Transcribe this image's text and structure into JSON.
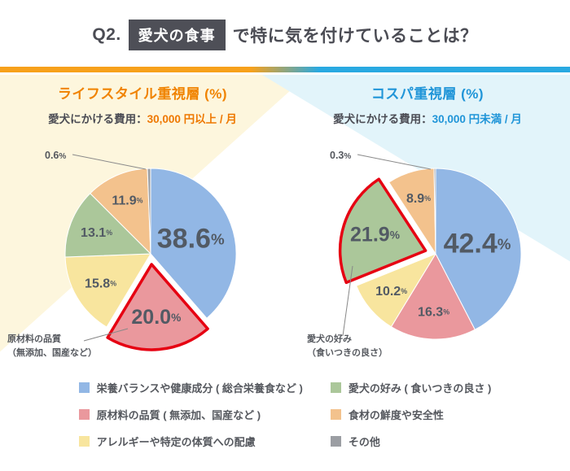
{
  "header": {
    "q_label": "Q2.",
    "highlight": "愛犬の食事",
    "rest": "で特に気を付けていることは？"
  },
  "colors": {
    "bar_orange": "#f7a11b",
    "bar_blue": "#29a9e1",
    "title_box": "#4e4f57",
    "accent_orange": "#f08300",
    "accent_blue": "#2095d8",
    "highlight_stroke": "#e60012",
    "wash_yellow": "#fdf6dd",
    "wash_cyan": "#e2f4fa",
    "series": {
      "nutrition": "#92b7e5",
      "ingredient": "#ea989d",
      "allergy": "#f8e59e",
      "preference": "#abc79a",
      "freshness": "#f3c28d",
      "other": "#9b9ea3"
    }
  },
  "chart_data": [
    {
      "type": "pie",
      "title": "ライフスタイル重視層 (%)",
      "subtitle_label": "愛犬にかける費用：",
      "subtitle_value": "30,000 円以上 / 月",
      "annotation_line1": "原材料の品質",
      "annotation_line2": "（無添加、国産など）",
      "slices": [
        {
          "label": "栄養バランスや健康成分 ( 総合栄養食など )",
          "value": 38.6,
          "color_key": "nutrition"
        },
        {
          "label": "原材料の品質 ( 無添加、国産など )",
          "value": 20.0,
          "color_key": "ingredient",
          "exploded": true
        },
        {
          "label": "アレルギーや特定の体質への配慮",
          "value": 15.8,
          "color_key": "allergy"
        },
        {
          "label": "愛犬の好み ( 食いつきの良さ )",
          "value": 13.1,
          "color_key": "preference"
        },
        {
          "label": "食材の鮮度や安全性",
          "value": 11.9,
          "color_key": "freshness"
        },
        {
          "label": "その他",
          "value": 0.6,
          "color_key": "other",
          "outside": true
        }
      ]
    },
    {
      "type": "pie",
      "title": "コスパ重視層 (%)",
      "subtitle_label": "愛犬にかける費用：",
      "subtitle_value": "30,000 円未満 / 月",
      "annotation_line1": "愛犬の好み",
      "annotation_line2": "（食いつきの良さ）",
      "slices": [
        {
          "label": "栄養バランスや健康成分 ( 総合栄養食など )",
          "value": 42.4,
          "color_key": "nutrition"
        },
        {
          "label": "原材料の品質 ( 無添加、国産など )",
          "value": 16.3,
          "color_key": "ingredient"
        },
        {
          "label": "アレルギーや特定の体質への配慮",
          "value": 10.2,
          "color_key": "allergy"
        },
        {
          "label": "愛犬の好み ( 食いつきの良さ )",
          "value": 21.9,
          "color_key": "preference",
          "exploded": true
        },
        {
          "label": "食材の鮮度や安全性",
          "value": 8.9,
          "color_key": "freshness"
        },
        {
          "label": "その他",
          "value": 0.3,
          "color_key": "other",
          "outside": true
        }
      ]
    }
  ],
  "legend": [
    {
      "label": "栄養バランスや健康成分 ( 総合栄養食など )",
      "color_key": "nutrition"
    },
    {
      "label": "原材料の品質 ( 無添加、国産など )",
      "color_key": "ingredient"
    },
    {
      "label": "アレルギーや特定の体質への配慮",
      "color_key": "allergy"
    },
    {
      "label": "愛犬の好み ( 食いつきの良さ )",
      "color_key": "preference"
    },
    {
      "label": "食材の鮮度や安全性",
      "color_key": "freshness"
    },
    {
      "label": "その他",
      "color_key": "other"
    }
  ]
}
